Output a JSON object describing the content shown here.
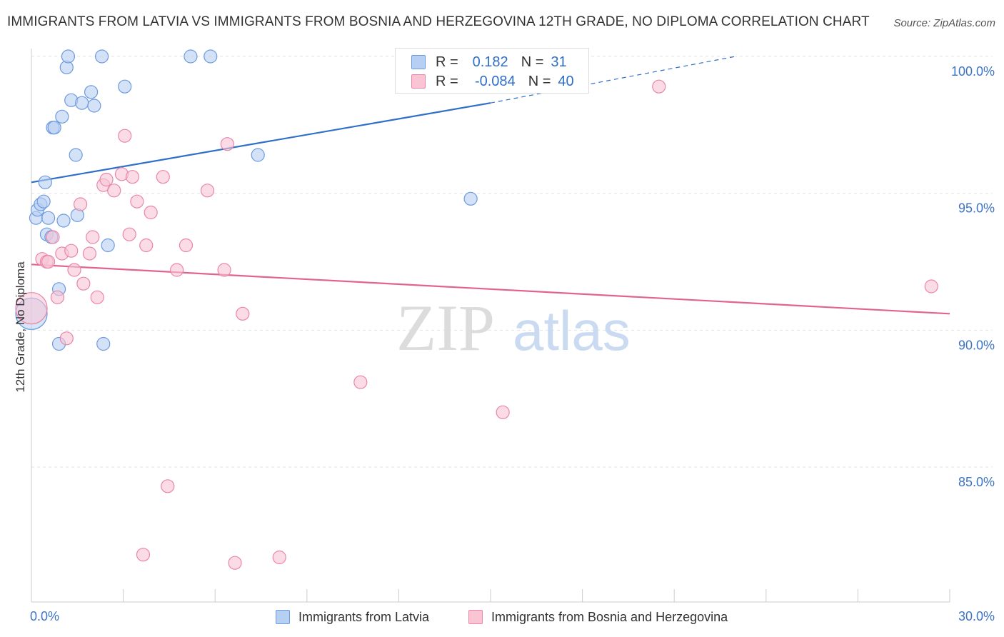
{
  "header": {
    "title": "IMMIGRANTS FROM LATVIA VS IMMIGRANTS FROM BOSNIA AND HERZEGOVINA 12TH GRADE, NO DIPLOMA CORRELATION CHART",
    "source": "Source: ZipAtlas.com"
  },
  "legend": {
    "row1": {
      "r_label": "R =",
      "r_value": "0.182",
      "n_label": "N =",
      "n_value": "31"
    },
    "row2": {
      "r_label": "R =",
      "r_value": "-0.084",
      "n_label": "N =",
      "n_value": "40"
    }
  },
  "watermark": {
    "zip": "ZIP",
    "atlas": "atlas"
  },
  "colors": {
    "blue_fill": "#b7cff2",
    "blue_stroke": "#6c9ae0",
    "blue_line": "#2f6fc9",
    "pink_fill": "#f9c5d5",
    "pink_stroke": "#e986a8",
    "pink_line": "#e0648e",
    "axis_label": "#3d74c6"
  },
  "chart_data": {
    "type": "scatter",
    "title": "IMMIGRANTS FROM LATVIA VS IMMIGRANTS FROM BOSNIA AND HERZEGOVINA 12TH GRADE, NO DIPLOMA CORRELATION CHART",
    "xlabel": "",
    "ylabel": "12th Grade, No Diploma",
    "xlim": [
      0,
      30
    ],
    "ylim": [
      80.0,
      100.7
    ],
    "x_tick_labels": [
      {
        "value": 0,
        "label": "0.0%"
      },
      {
        "value": 30,
        "label": "30.0%"
      }
    ],
    "y_tick_labels": [
      {
        "value": 100,
        "label": "100.0%"
      },
      {
        "value": 95,
        "label": "95.0%"
      },
      {
        "value": 90,
        "label": "90.0%"
      },
      {
        "value": 85,
        "label": "85.0%"
      }
    ],
    "grid": true,
    "legend_position": "top-center",
    "series": [
      {
        "name": "Immigrants from Latvia",
        "color": "#6c9ae0",
        "trend": {
          "x": [
            0,
            15
          ],
          "y": [
            95.4,
            98.3
          ],
          "dashed_to": [
            23,
            100.0
          ]
        },
        "points": [
          {
            "x": 0.0,
            "y": 90.6,
            "big": true
          },
          {
            "x": 0.15,
            "y": 94.1
          },
          {
            "x": 0.2,
            "y": 94.4
          },
          {
            "x": 0.3,
            "y": 94.6
          },
          {
            "x": 0.4,
            "y": 94.7
          },
          {
            "x": 0.45,
            "y": 95.4
          },
          {
            "x": 0.5,
            "y": 93.5
          },
          {
            "x": 0.55,
            "y": 94.1
          },
          {
            "x": 0.65,
            "y": 93.4
          },
          {
            "x": 0.7,
            "y": 97.4
          },
          {
            "x": 0.75,
            "y": 97.4
          },
          {
            "x": 0.9,
            "y": 91.5
          },
          {
            "x": 0.9,
            "y": 89.5
          },
          {
            "x": 1.0,
            "y": 97.8
          },
          {
            "x": 1.05,
            "y": 94.0
          },
          {
            "x": 1.15,
            "y": 99.6
          },
          {
            "x": 1.2,
            "y": 100.0
          },
          {
            "x": 1.3,
            "y": 98.4
          },
          {
            "x": 1.45,
            "y": 96.4
          },
          {
            "x": 1.5,
            "y": 94.2
          },
          {
            "x": 1.65,
            "y": 98.3
          },
          {
            "x": 1.95,
            "y": 98.7
          },
          {
            "x": 2.05,
            "y": 98.2
          },
          {
            "x": 2.3,
            "y": 100.0
          },
          {
            "x": 2.35,
            "y": 89.5
          },
          {
            "x": 2.5,
            "y": 93.1
          },
          {
            "x": 3.05,
            "y": 98.9
          },
          {
            "x": 5.2,
            "y": 100.0
          },
          {
            "x": 5.85,
            "y": 100.0
          },
          {
            "x": 7.4,
            "y": 96.4
          },
          {
            "x": 14.35,
            "y": 94.8
          }
        ]
      },
      {
        "name": "Immigrants from Bosnia and Herzegovina",
        "color": "#e986a8",
        "trend": {
          "x": [
            0,
            30
          ],
          "y": [
            92.4,
            90.6
          ]
        },
        "points": [
          {
            "x": 0.0,
            "y": 90.8,
            "big": true
          },
          {
            "x": 0.35,
            "y": 92.6
          },
          {
            "x": 0.5,
            "y": 92.5
          },
          {
            "x": 0.55,
            "y": 92.5
          },
          {
            "x": 0.7,
            "y": 93.4
          },
          {
            "x": 0.85,
            "y": 91.2
          },
          {
            "x": 1.0,
            "y": 92.8
          },
          {
            "x": 1.15,
            "y": 89.7
          },
          {
            "x": 1.3,
            "y": 92.9
          },
          {
            "x": 1.4,
            "y": 92.2
          },
          {
            "x": 1.6,
            "y": 94.6
          },
          {
            "x": 1.7,
            "y": 91.7
          },
          {
            "x": 1.9,
            "y": 92.8
          },
          {
            "x": 2.0,
            "y": 93.4
          },
          {
            "x": 2.15,
            "y": 91.2
          },
          {
            "x": 2.35,
            "y": 95.3
          },
          {
            "x": 2.45,
            "y": 95.5
          },
          {
            "x": 2.7,
            "y": 95.1
          },
          {
            "x": 2.95,
            "y": 95.7
          },
          {
            "x": 3.05,
            "y": 97.1
          },
          {
            "x": 3.2,
            "y": 93.5
          },
          {
            "x": 3.3,
            "y": 95.6
          },
          {
            "x": 3.45,
            "y": 94.7
          },
          {
            "x": 3.75,
            "y": 93.1
          },
          {
            "x": 3.9,
            "y": 94.3
          },
          {
            "x": 4.3,
            "y": 95.6
          },
          {
            "x": 4.45,
            "y": 84.3
          },
          {
            "x": 4.75,
            "y": 92.2
          },
          {
            "x": 5.05,
            "y": 93.1
          },
          {
            "x": 5.75,
            "y": 95.1
          },
          {
            "x": 6.3,
            "y": 92.2
          },
          {
            "x": 6.4,
            "y": 96.8
          },
          {
            "x": 6.65,
            "y": 81.5
          },
          {
            "x": 6.9,
            "y": 90.6
          },
          {
            "x": 3.65,
            "y": 81.8
          },
          {
            "x": 8.1,
            "y": 81.7
          },
          {
            "x": 10.75,
            "y": 88.1
          },
          {
            "x": 15.4,
            "y": 87.0
          },
          {
            "x": 20.5,
            "y": 98.9
          },
          {
            "x": 29.4,
            "y": 91.6
          }
        ]
      }
    ]
  },
  "bottom_legend": {
    "item1": "Immigrants from Latvia",
    "item2": "Immigrants from Bosnia and Herzegovina"
  }
}
